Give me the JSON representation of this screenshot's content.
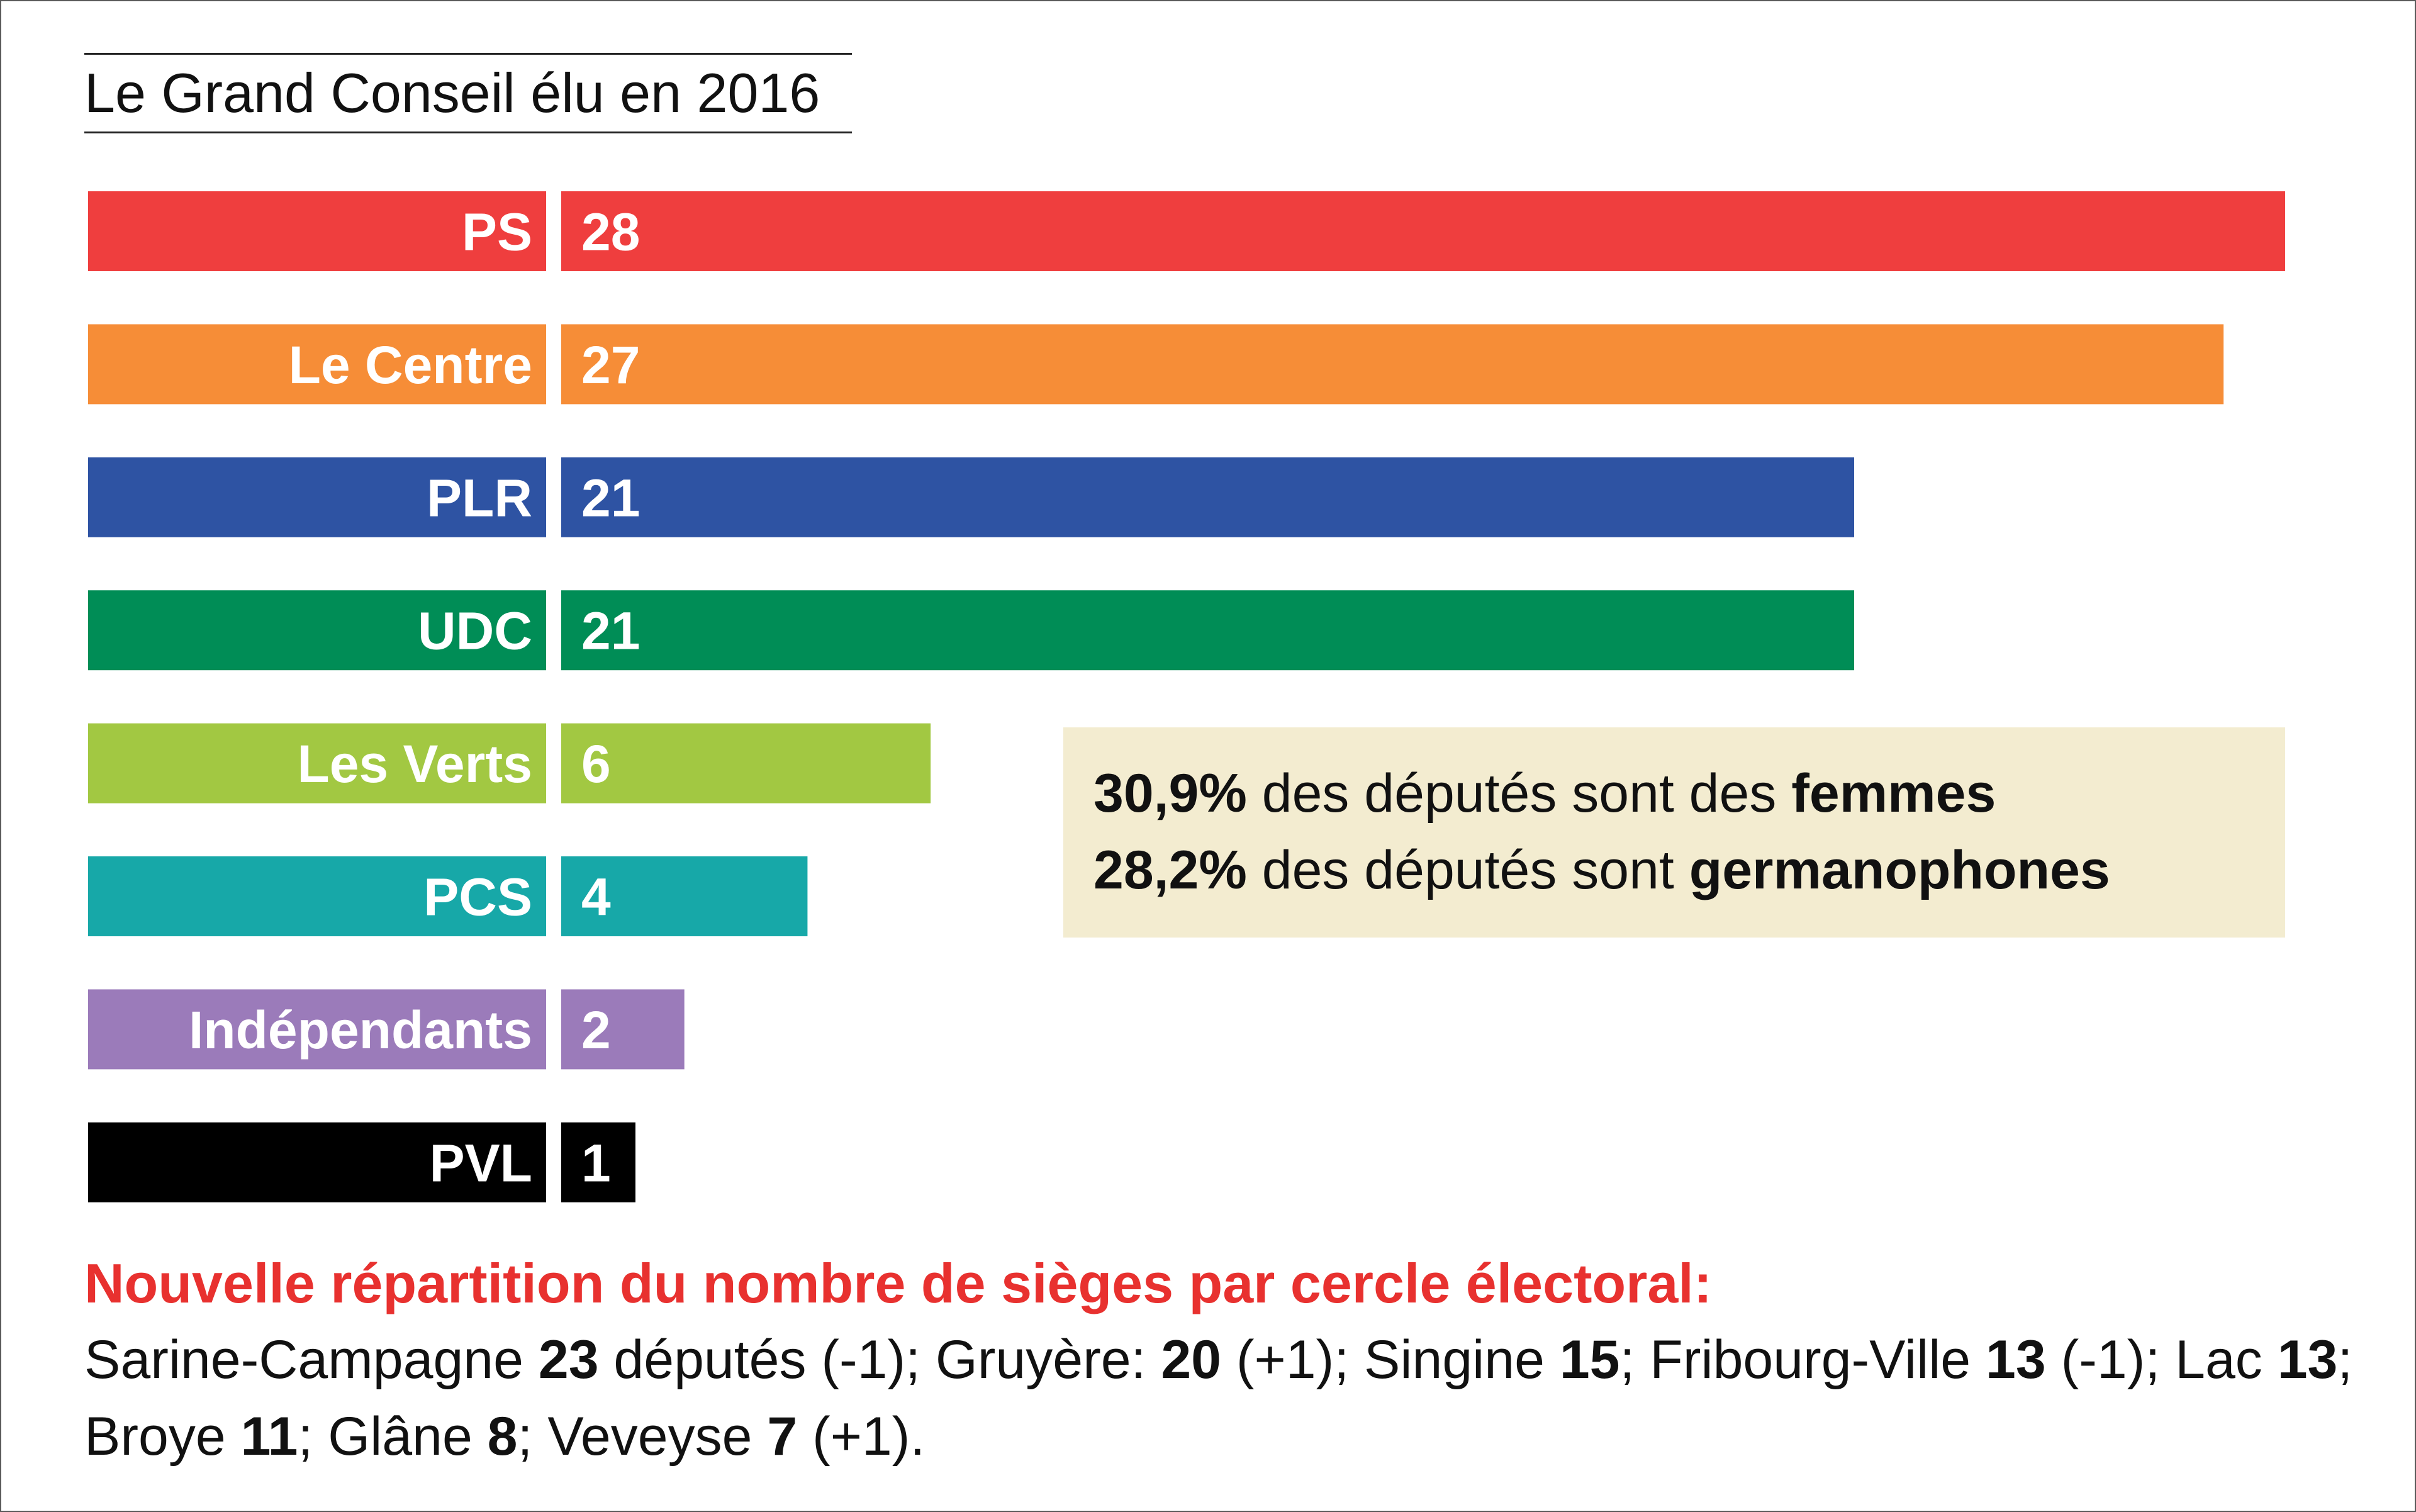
{
  "title": "Le Grand Conseil élu en 2016",
  "chart_data": {
    "type": "bar",
    "orientation": "horizontal",
    "title": "Le Grand Conseil élu en 2016",
    "categories": [
      "PS",
      "Le Centre",
      "PLR",
      "UDC",
      "Les Verts",
      "PCS",
      "Indépendants",
      "PVL"
    ],
    "values": [
      28,
      27,
      21,
      21,
      6,
      4,
      2,
      1
    ],
    "colors": [
      "#ef3e3e",
      "#f68d37",
      "#2e53a3",
      "#008d56",
      "#a2c842",
      "#17a8a8",
      "#9b7bba",
      "#000000"
    ],
    "xlim": [
      0,
      28
    ],
    "grid": false,
    "legend": "none"
  },
  "info": {
    "line1": {
      "value": "30,9%",
      "text": " des députés sont des ",
      "emphasis": "femmes"
    },
    "line2": {
      "value": "28,2%",
      "text": " des députés sont ",
      "emphasis": "germanophones"
    }
  },
  "note": {
    "title": "Nouvelle répartition du nombre de sièges par cercle électoral:",
    "items": [
      {
        "name": "Sarine-Campagne ",
        "seats": "23",
        "suffix": " députés (-1); "
      },
      {
        "name": "Gruyère: ",
        "seats": "20",
        "suffix": " (+1); "
      },
      {
        "name": "Singine ",
        "seats": "15",
        "suffix": "; "
      },
      {
        "name": "Fribourg-Ville ",
        "seats": "13",
        "suffix": " (-1); "
      },
      {
        "name": "Lac ",
        "seats": "13",
        "suffix": "; "
      },
      {
        "name": "Broye ",
        "seats": "11",
        "suffix": "; "
      },
      {
        "name": "Glâne ",
        "seats": "8",
        "suffix": "; "
      },
      {
        "name": "Veveyse ",
        "seats": "7",
        "suffix": " (+1)."
      }
    ]
  }
}
